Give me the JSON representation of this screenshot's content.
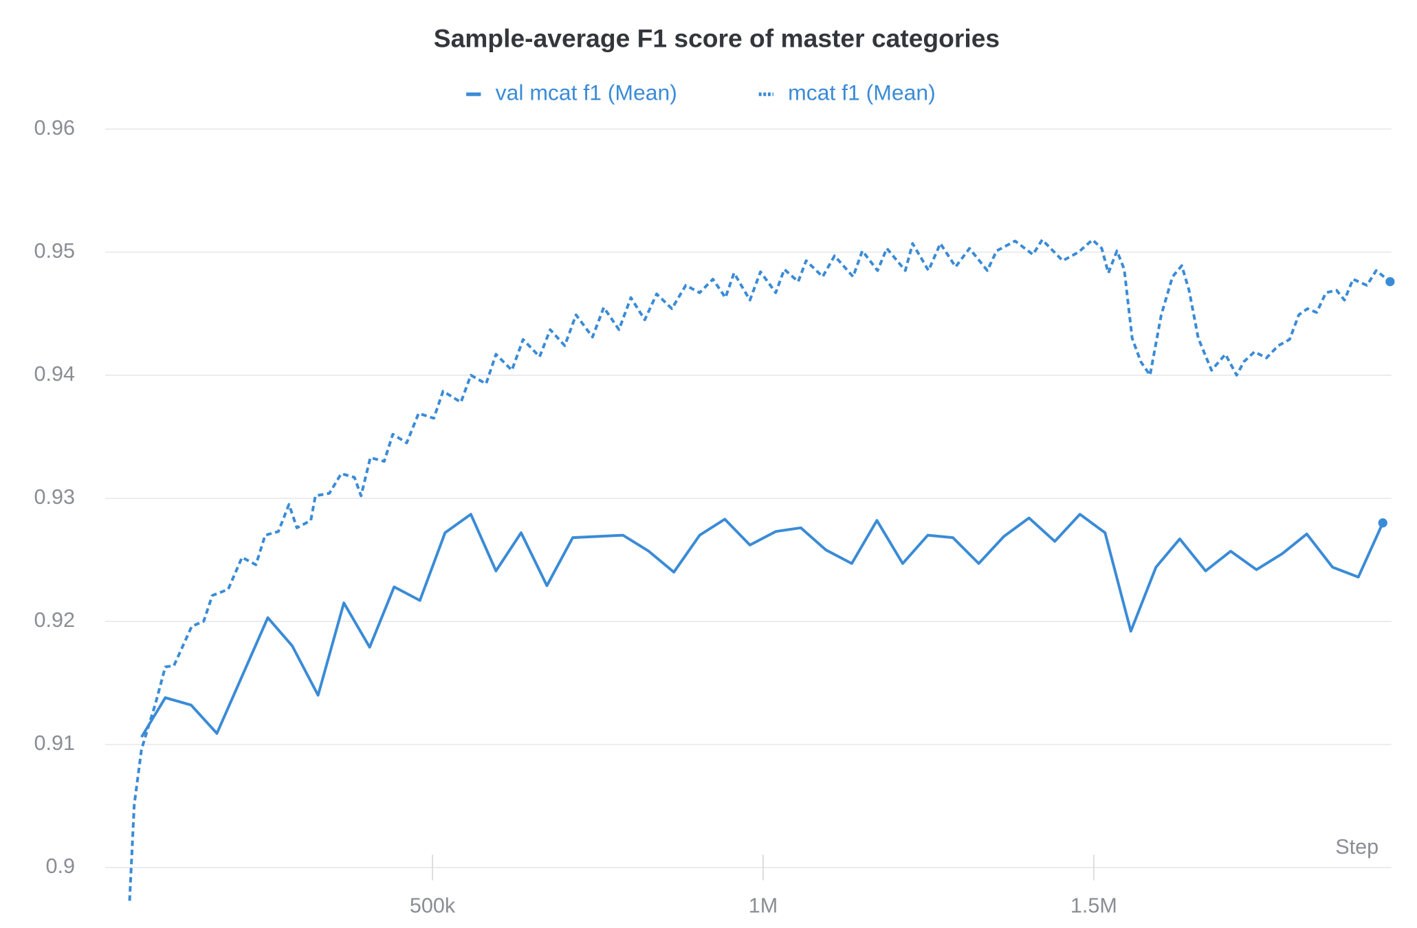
{
  "chart_data": {
    "type": "line",
    "title": "Sample-average F1 score of master categories",
    "x_label": "Step",
    "xlim": [
      5000,
      1950000
    ],
    "ylim": [
      0.9,
      0.96
    ],
    "yticks": [
      0.9,
      0.91,
      0.92,
      0.93,
      0.94,
      0.95,
      0.96
    ],
    "xticks": [
      {
        "value": 500000,
        "label": "500k"
      },
      {
        "value": 1000000,
        "label": "1M"
      },
      {
        "value": 1500000,
        "label": "1.5M"
      }
    ],
    "grid": true,
    "legend": "top",
    "series": [
      {
        "name": "val mcat f1 (Mean)",
        "color": "#3a8bd6",
        "dash": "solid",
        "x": [
          60000,
          96000,
          135000,
          174000,
          251000,
          288000,
          327000,
          366000,
          405000,
          442000,
          481000,
          519000,
          558000,
          596000,
          634000,
          673000,
          712000,
          788000,
          827000,
          865000,
          904000,
          942000,
          980000,
          1019000,
          1057000,
          1095000,
          1134000,
          1172000,
          1211000,
          1249000,
          1287000,
          1326000,
          1364000,
          1402000,
          1441000,
          1479000,
          1517000,
          1556000,
          1594000,
          1630000,
          1669000,
          1707000,
          1746000,
          1785000,
          1822000,
          1861000,
          1900000,
          1937000
        ],
        "values": [
          0.9106,
          0.9138,
          0.9132,
          0.9109,
          0.9203,
          0.918,
          0.914,
          0.9215,
          0.9179,
          0.9228,
          0.9217,
          0.9272,
          0.9287,
          0.9241,
          0.9272,
          0.9229,
          0.9268,
          0.927,
          0.9257,
          0.924,
          0.927,
          0.9283,
          0.9262,
          0.9273,
          0.9276,
          0.9258,
          0.9247,
          0.9282,
          0.9247,
          0.927,
          0.9268,
          0.9247,
          0.9269,
          0.9284,
          0.9265,
          0.9287,
          0.9272,
          0.9192,
          0.9244,
          0.9267,
          0.9241,
          0.9257,
          0.9242,
          0.9255,
          0.9271,
          0.9244,
          0.9236,
          0.928
        ]
      },
      {
        "name": "mcat f1 (Mean)",
        "color": "#3a8bd6",
        "dash": "dashed",
        "x": [
          42000,
          49000,
          60000,
          81000,
          96000,
          109000,
          136000,
          154000,
          167000,
          191000,
          212000,
          233000,
          247000,
          267000,
          283000,
          295000,
          316000,
          323000,
          344000,
          362000,
          382000,
          392000,
          406000,
          427000,
          440000,
          461000,
          479000,
          502000,
          516000,
          543000,
          558000,
          581000,
          596000,
          620000,
          637000,
          662000,
          678000,
          700000,
          717000,
          742000,
          759000,
          782000,
          800000,
          821000,
          839000,
          862000,
          883000,
          904000,
          924000,
          943000,
          956000,
          980000,
          996000,
          1019000,
          1032000,
          1053000,
          1065000,
          1090000,
          1108000,
          1136000,
          1150000,
          1173000,
          1187000,
          1215000,
          1226000,
          1250000,
          1268000,
          1291000,
          1312000,
          1339000,
          1353000,
          1381000,
          1408000,
          1422000,
          1453000,
          1477000,
          1498000,
          1512000,
          1522000,
          1535000,
          1546000,
          1558000,
          1571000,
          1585000,
          1602000,
          1619000,
          1633000,
          1644000,
          1658000,
          1678000,
          1699000,
          1716000,
          1727000,
          1743000,
          1761000,
          1779000,
          1796000,
          1810000,
          1823000,
          1837000,
          1851000,
          1867000,
          1879000,
          1892000,
          1913000,
          1927000,
          1948000
        ],
        "values": [
          0.8973,
          0.9051,
          0.9096,
          0.9133,
          0.9163,
          0.9164,
          0.9196,
          0.92,
          0.9221,
          0.9226,
          0.9252,
          0.9246,
          0.927,
          0.9273,
          0.9295,
          0.9276,
          0.9282,
          0.9302,
          0.9304,
          0.932,
          0.9317,
          0.9302,
          0.9333,
          0.933,
          0.9352,
          0.9345,
          0.9369,
          0.9365,
          0.9387,
          0.9378,
          0.94,
          0.9393,
          0.9417,
          0.9404,
          0.9429,
          0.9415,
          0.9437,
          0.9424,
          0.9449,
          0.9431,
          0.9455,
          0.9437,
          0.9463,
          0.9445,
          0.9466,
          0.9454,
          0.9473,
          0.9467,
          0.9478,
          0.9463,
          0.9483,
          0.9461,
          0.9484,
          0.9467,
          0.9486,
          0.9476,
          0.9493,
          0.948,
          0.9497,
          0.948,
          0.9501,
          0.9485,
          0.9503,
          0.9485,
          0.9507,
          0.9485,
          0.9507,
          0.9488,
          0.9503,
          0.9485,
          0.9501,
          0.9509,
          0.9498,
          0.951,
          0.9493,
          0.95,
          0.951,
          0.9503,
          0.9483,
          0.9501,
          0.9486,
          0.943,
          0.9411,
          0.94,
          0.9449,
          0.948,
          0.9489,
          0.9469,
          0.943,
          0.9404,
          0.9417,
          0.94,
          0.9411,
          0.9419,
          0.9414,
          0.9424,
          0.9429,
          0.9449,
          0.9454,
          0.9451,
          0.9467,
          0.9469,
          0.9461,
          0.9478,
          0.9473,
          0.9485,
          0.9476
        ]
      }
    ]
  }
}
